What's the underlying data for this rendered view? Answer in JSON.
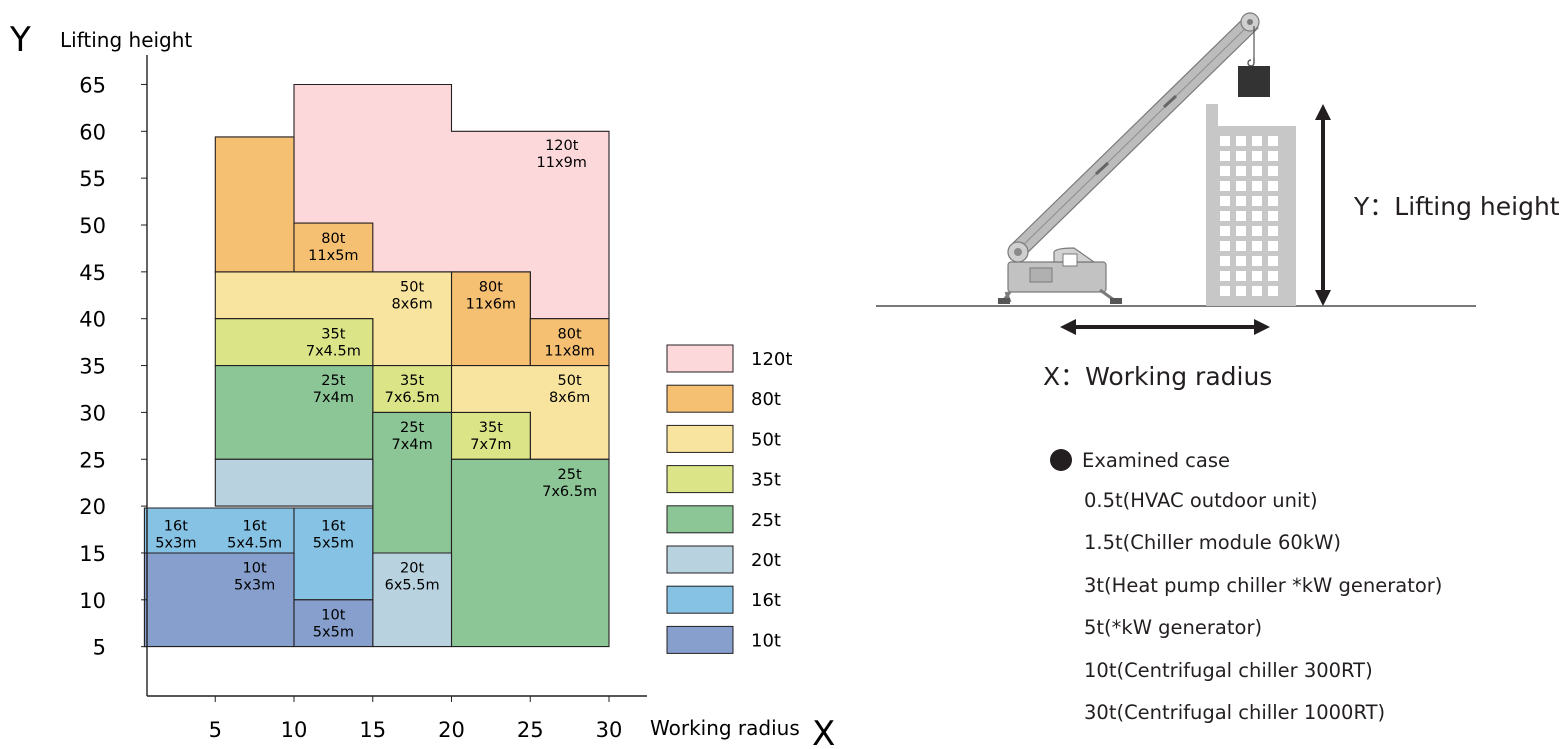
{
  "chart_data": {
    "type": "area",
    "title": "",
    "ylabel_letter": "Y",
    "ylabel": "Lifting height",
    "xlabel_letter": "X",
    "xlabel": "Working radius",
    "xlim": [
      0.5,
      32.5
    ],
    "ylim": [
      0,
      69
    ],
    "x_ticks": [
      5,
      10,
      15,
      20,
      25,
      30
    ],
    "y_ticks": [
      5,
      10,
      15,
      20,
      25,
      30,
      35,
      40,
      45,
      50,
      55,
      60,
      65
    ],
    "series": [
      {
        "name": "120t",
        "color": "#fcd8db"
      },
      {
        "name": "80t",
        "color": "#f6c073"
      },
      {
        "name": "50t",
        "color": "#f8e49e"
      },
      {
        "name": "35t",
        "color": "#dbe587"
      },
      {
        "name": "25t",
        "color": "#8cc596"
      },
      {
        "name": "20t",
        "color": "#b8d2e0"
      },
      {
        "name": "16t",
        "color": "#86c2e4"
      },
      {
        "name": "10t",
        "color": "#869fcd"
      }
    ],
    "polygons": [
      {
        "series": "120t",
        "points": [
          [
            10,
            45
          ],
          [
            10,
            65
          ],
          [
            20,
            65
          ],
          [
            20,
            60
          ],
          [
            30,
            60
          ],
          [
            30,
            40
          ],
          [
            25,
            40
          ],
          [
            25,
            45
          ]
        ]
      },
      {
        "series": "80t",
        "points": [
          [
            5,
            45
          ],
          [
            5,
            59.4
          ],
          [
            10,
            59.4
          ],
          [
            10,
            45
          ]
        ]
      },
      {
        "series": "80t",
        "points": [
          [
            10,
            45
          ],
          [
            10,
            50.2
          ],
          [
            15,
            50.2
          ],
          [
            15,
            45
          ]
        ]
      },
      {
        "series": "80t",
        "points": [
          [
            20,
            35
          ],
          [
            20,
            45
          ],
          [
            25,
            45
          ],
          [
            25,
            35
          ]
        ]
      },
      {
        "series": "80t",
        "points": [
          [
            25,
            35
          ],
          [
            25,
            40
          ],
          [
            30,
            40
          ],
          [
            30,
            35
          ]
        ]
      },
      {
        "series": "50t",
        "points": [
          [
            5,
            40
          ],
          [
            5,
            45
          ],
          [
            20,
            45
          ],
          [
            20,
            35
          ],
          [
            15,
            35
          ],
          [
            15,
            40
          ]
        ]
      },
      {
        "series": "50t",
        "points": [
          [
            20,
            25
          ],
          [
            20,
            35
          ],
          [
            30,
            35
          ],
          [
            30,
            25
          ],
          [
            25,
            25
          ],
          [
            25,
            30
          ]
        ]
      },
      {
        "series": "35t",
        "points": [
          [
            5,
            35
          ],
          [
            5,
            40
          ],
          [
            15,
            40
          ],
          [
            15,
            35
          ]
        ]
      },
      {
        "series": "35t",
        "points": [
          [
            15,
            30
          ],
          [
            15,
            35
          ],
          [
            20,
            35
          ],
          [
            20,
            30
          ]
        ]
      },
      {
        "series": "35t",
        "points": [
          [
            20,
            25
          ],
          [
            20,
            30
          ],
          [
            25,
            30
          ],
          [
            25,
            25
          ]
        ]
      },
      {
        "series": "25t",
        "points": [
          [
            5,
            25
          ],
          [
            5,
            35
          ],
          [
            15,
            35
          ],
          [
            15,
            25
          ]
        ]
      },
      {
        "series": "25t",
        "points": [
          [
            15,
            15
          ],
          [
            15,
            30
          ],
          [
            20,
            30
          ],
          [
            20,
            15
          ]
        ]
      },
      {
        "series": "25t",
        "points": [
          [
            20,
            5
          ],
          [
            20,
            25
          ],
          [
            30,
            25
          ],
          [
            30,
            5
          ]
        ]
      },
      {
        "series": "20t",
        "points": [
          [
            5,
            20
          ],
          [
            5,
            25
          ],
          [
            15,
            25
          ],
          [
            15,
            20
          ]
        ]
      },
      {
        "series": "20t",
        "points": [
          [
            15,
            5
          ],
          [
            15,
            15
          ],
          [
            20,
            15
          ],
          [
            20,
            5
          ]
        ]
      },
      {
        "series": "16t",
        "points": [
          [
            0.5,
            15
          ],
          [
            0.5,
            19.8
          ],
          [
            10,
            19.8
          ],
          [
            10,
            15
          ]
        ]
      },
      {
        "series": "16t",
        "points": [
          [
            10,
            10
          ],
          [
            10,
            19.8
          ],
          [
            15,
            19.8
          ],
          [
            15,
            10
          ]
        ]
      },
      {
        "series": "10t",
        "points": [
          [
            0.5,
            5
          ],
          [
            0.5,
            15
          ],
          [
            10,
            15
          ],
          [
            10,
            5
          ]
        ]
      },
      {
        "series": "10t",
        "points": [
          [
            10,
            5
          ],
          [
            10,
            10
          ],
          [
            15,
            10
          ],
          [
            15,
            5
          ]
        ]
      }
    ],
    "labels": [
      {
        "x": 27.0,
        "y": 58.0,
        "lines": [
          "120t",
          "11x9m"
        ]
      },
      {
        "x": 12.5,
        "y": 48.1,
        "lines": [
          "80t",
          "11x5m"
        ]
      },
      {
        "x": 17.5,
        "y": 42.9,
        "lines": [
          "50t",
          "8x6m"
        ]
      },
      {
        "x": 22.5,
        "y": 42.9,
        "lines": [
          "80t",
          "11x6m"
        ]
      },
      {
        "x": 27.5,
        "y": 37.9,
        "lines": [
          "80t",
          "11x8m"
        ]
      },
      {
        "x": 12.5,
        "y": 37.9,
        "lines": [
          "35t",
          "7x4.5m"
        ]
      },
      {
        "x": 12.5,
        "y": 32.9,
        "lines": [
          "25t",
          "7x4m"
        ]
      },
      {
        "x": 17.5,
        "y": 32.9,
        "lines": [
          "35t",
          "7x6.5m"
        ]
      },
      {
        "x": 27.5,
        "y": 32.9,
        "lines": [
          "50t",
          "8x6m"
        ]
      },
      {
        "x": 17.5,
        "y": 27.9,
        "lines": [
          "25t",
          "7x4m"
        ]
      },
      {
        "x": 22.5,
        "y": 27.9,
        "lines": [
          "35t",
          "7x7m"
        ]
      },
      {
        "x": 27.5,
        "y": 22.9,
        "lines": [
          "25t",
          "7x6.5m"
        ]
      },
      {
        "x": 2.5,
        "y": 17.4,
        "lines": [
          "16t",
          "5x3m"
        ]
      },
      {
        "x": 7.5,
        "y": 17.4,
        "lines": [
          "16t",
          "5x4.5m"
        ]
      },
      {
        "x": 12.5,
        "y": 17.4,
        "lines": [
          "16t",
          "5x5m"
        ]
      },
      {
        "x": 7.5,
        "y": 12.9,
        "lines": [
          "10t",
          "5x3m"
        ]
      },
      {
        "x": 17.5,
        "y": 12.9,
        "lines": [
          "20t",
          "6x5.5m"
        ]
      },
      {
        "x": 12.5,
        "y": 7.9,
        "lines": [
          "10t",
          "5x5m"
        ]
      }
    ],
    "legend_placement": "right",
    "grid": false
  },
  "diagram": {
    "y_label": "Y：Lifting height",
    "x_label": "X：Working radius"
  },
  "cases": {
    "heading": "Examined case",
    "items": [
      "0.5t(HVAC outdoor unit)",
      "1.5t(Chiller module 60kW)",
      "3t(Heat pump chiller *kW generator)",
      "5t(*kW generator)",
      "10t(Centrifugal chiller 300RT)",
      "30t(Centrifugal chiller 1000RT)"
    ]
  }
}
